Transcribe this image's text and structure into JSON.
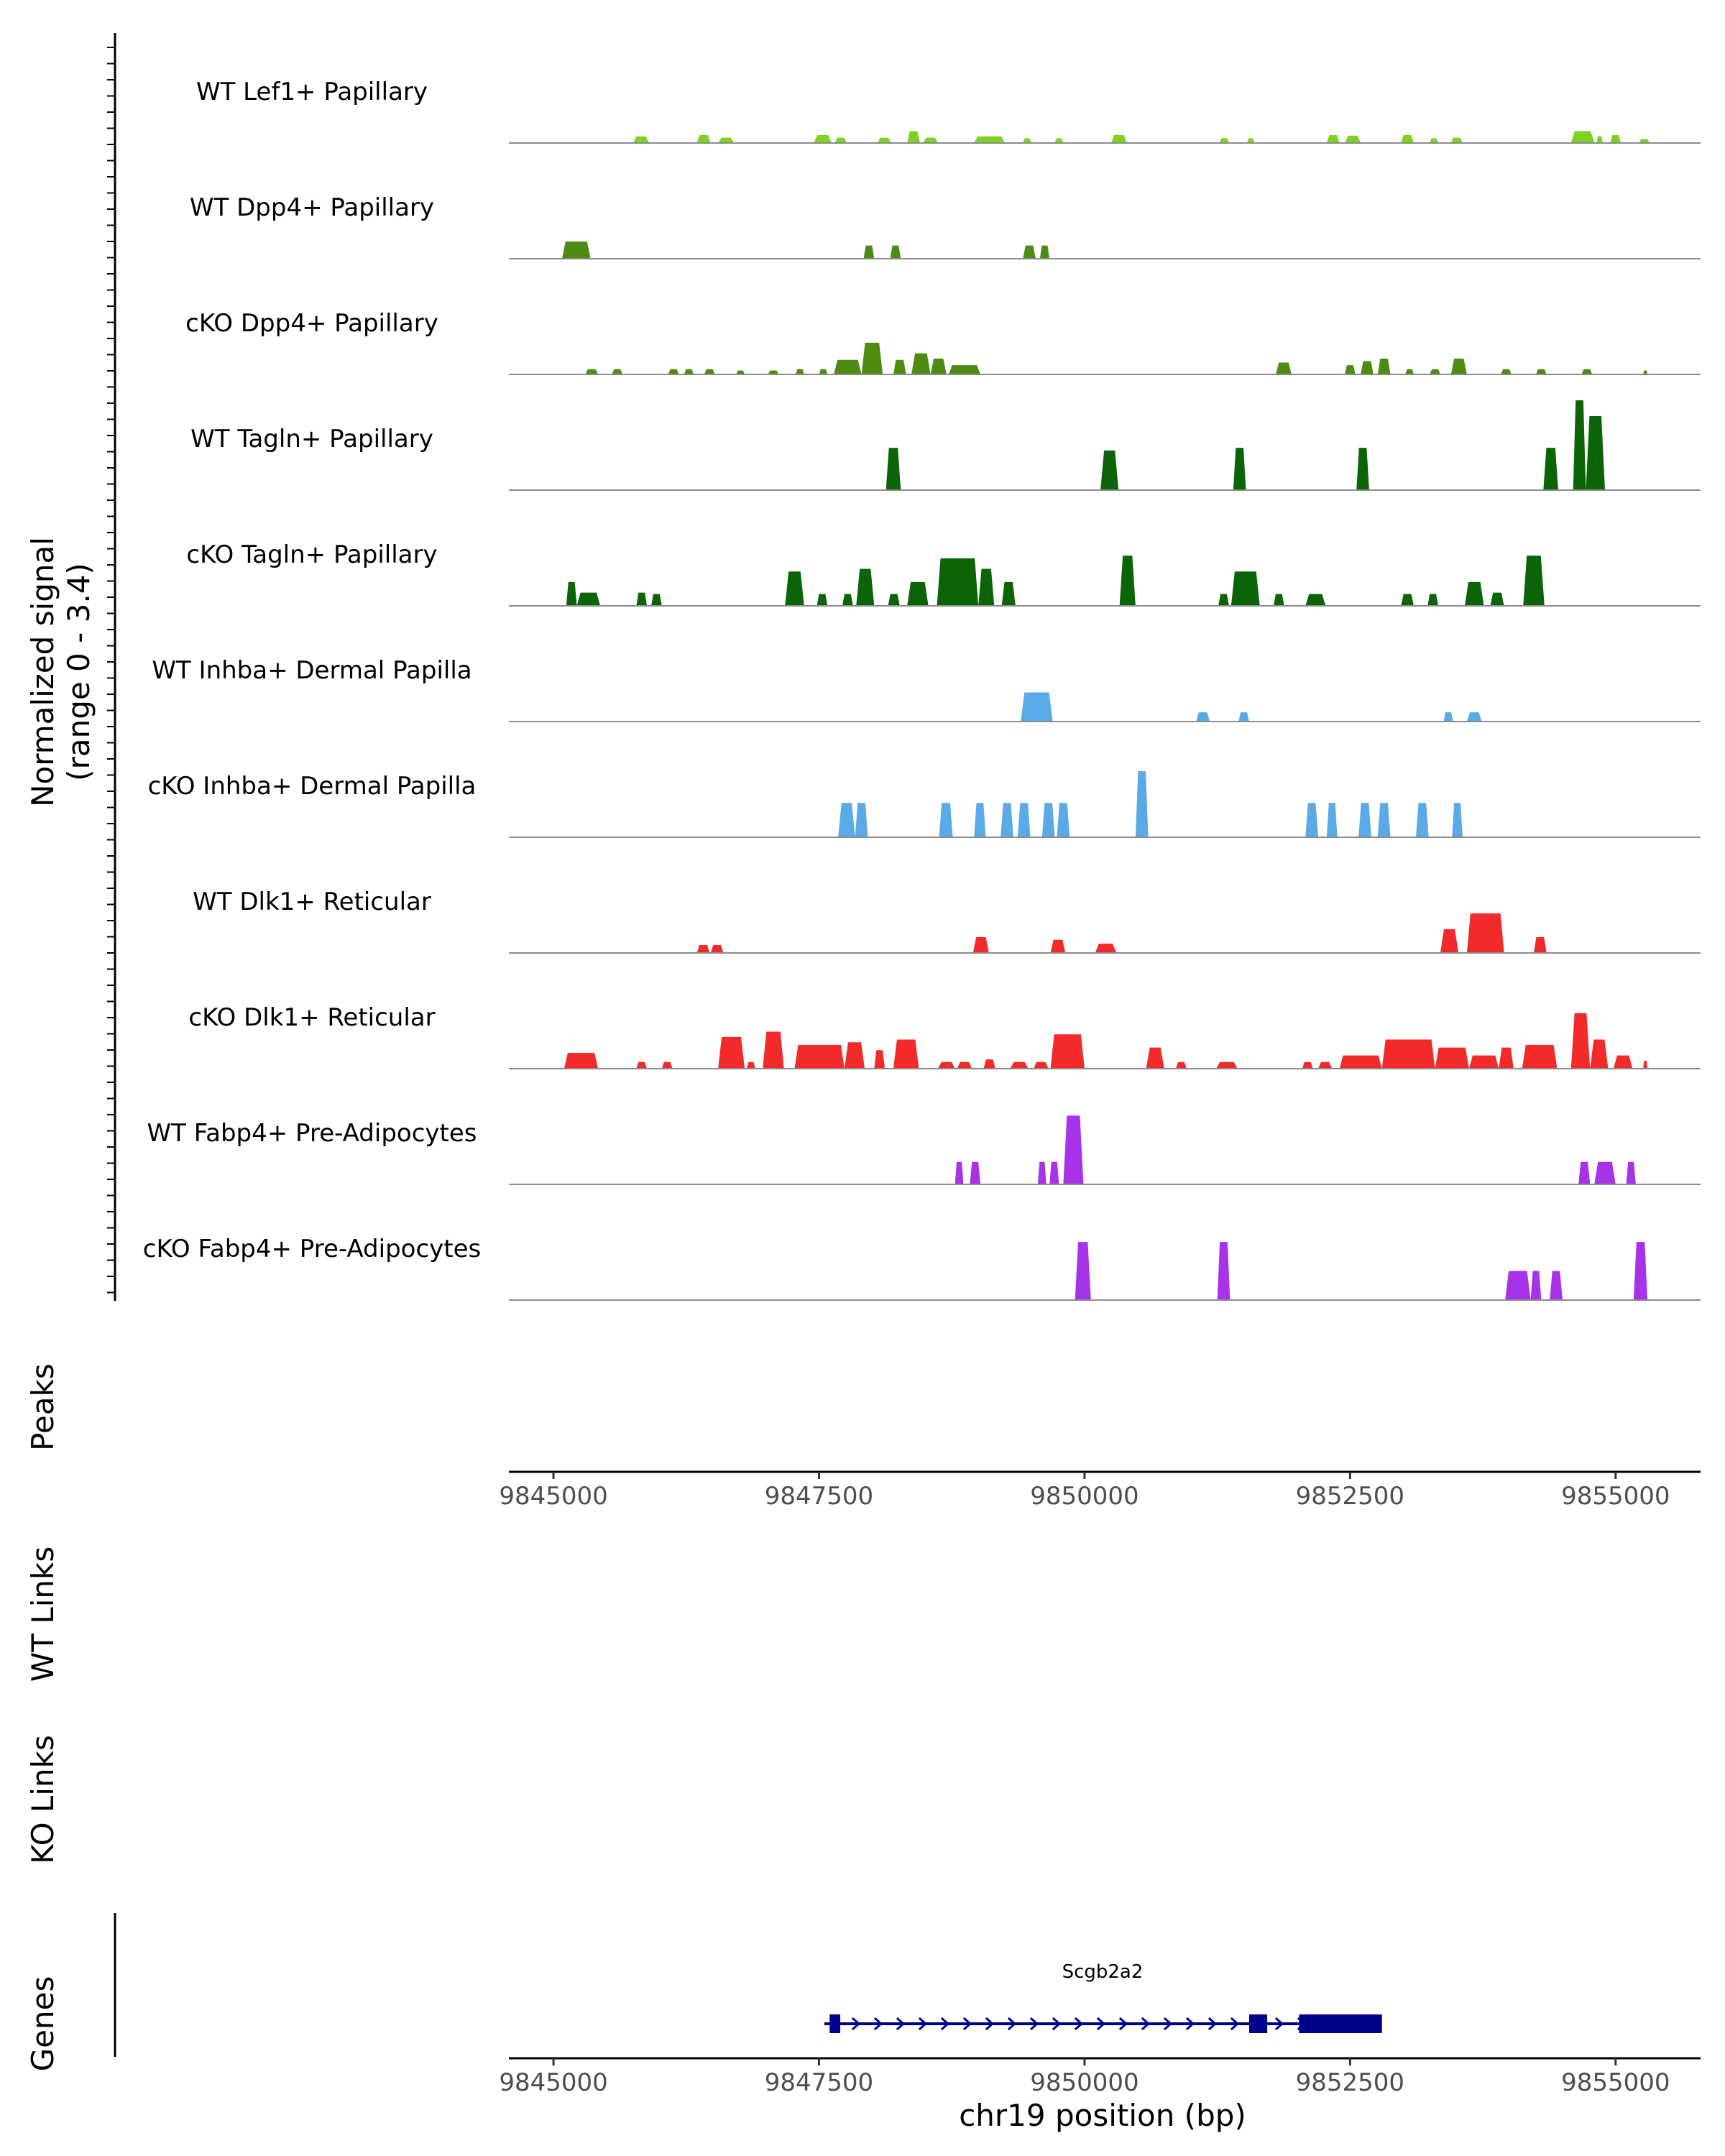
{
  "chart_data": {
    "type": "coverage-track",
    "y_axis_title": "Normalized signal",
    "y_axis_range_label": "(range 0 - 3.4)",
    "ylim": [
      0,
      3.4
    ],
    "xlim": [
      9844580,
      9855800
    ],
    "x_ticks": [
      9845000,
      9847500,
      9850000,
      9852500,
      9855000
    ],
    "x_tick_labels": [
      "9845000",
      "9847500",
      "9850000",
      "9852500",
      "9855000"
    ],
    "xlabel": "chr19 position (bp)",
    "section_labels": {
      "peaks": "Peaks",
      "wt_links": "WT Links",
      "ko_links": "KO Links",
      "genes": "Genes"
    },
    "tracks": [
      {
        "name": "WT Lef1+ Papillary",
        "color": "#7ED321",
        "peaks": [
          [
            9845750,
            9845900,
            0.25
          ],
          [
            9846350,
            9846480,
            0.3
          ],
          [
            9846550,
            9846700,
            0.2
          ],
          [
            9847450,
            9847620,
            0.3
          ],
          [
            9847650,
            9847760,
            0.2
          ],
          [
            9848050,
            9848180,
            0.2
          ],
          [
            9848330,
            9848450,
            0.45
          ],
          [
            9848480,
            9848620,
            0.2
          ],
          [
            9848960,
            9849250,
            0.25
          ],
          [
            9849420,
            9849500,
            0.18
          ],
          [
            9849720,
            9849800,
            0.18
          ],
          [
            9850250,
            9850400,
            0.3
          ],
          [
            9851270,
            9851360,
            0.18
          ],
          [
            9851530,
            9851600,
            0.18
          ],
          [
            9852280,
            9852400,
            0.3
          ],
          [
            9852450,
            9852600,
            0.28
          ],
          [
            9852980,
            9853100,
            0.3
          ],
          [
            9853250,
            9853330,
            0.18
          ],
          [
            9853450,
            9853560,
            0.2
          ],
          [
            9854580,
            9854800,
            0.45
          ],
          [
            9854820,
            9854880,
            0.25
          ],
          [
            9854950,
            9855050,
            0.3
          ],
          [
            9855220,
            9855320,
            0.15
          ]
        ]
      },
      {
        "name": "WT Dpp4+ Papillary",
        "color": "#4E8B12",
        "peaks": [
          [
            9845080,
            9845350,
            0.65
          ],
          [
            9847920,
            9848020,
            0.5
          ],
          [
            9848170,
            9848270,
            0.5
          ],
          [
            9849420,
            9849540,
            0.5
          ],
          [
            9849580,
            9849670,
            0.5
          ]
        ]
      },
      {
        "name": "cKO Dpp4+ Papillary",
        "color": "#4E8B12",
        "peaks": [
          [
            9845300,
            9845420,
            0.2
          ],
          [
            9845550,
            9845650,
            0.2
          ],
          [
            9846080,
            9846180,
            0.2
          ],
          [
            9846230,
            9846320,
            0.2
          ],
          [
            9846420,
            9846520,
            0.2
          ],
          [
            9846720,
            9846800,
            0.15
          ],
          [
            9847020,
            9847120,
            0.15
          ],
          [
            9847280,
            9847360,
            0.2
          ],
          [
            9847500,
            9847580,
            0.2
          ],
          [
            9847640,
            9847900,
            0.55
          ],
          [
            9847900,
            9848100,
            1.2
          ],
          [
            9848200,
            9848320,
            0.55
          ],
          [
            9848370,
            9848550,
            0.8
          ],
          [
            9848550,
            9848700,
            0.6
          ],
          [
            9848720,
            9849020,
            0.35
          ],
          [
            9851800,
            9851950,
            0.45
          ],
          [
            9852450,
            9852550,
            0.35
          ],
          [
            9852600,
            9852720,
            0.5
          ],
          [
            9852760,
            9852880,
            0.6
          ],
          [
            9853020,
            9853100,
            0.2
          ],
          [
            9853250,
            9853350,
            0.2
          ],
          [
            9853450,
            9853600,
            0.6
          ],
          [
            9853920,
            9854020,
            0.2
          ],
          [
            9854250,
            9854350,
            0.2
          ],
          [
            9854680,
            9854780,
            0.2
          ],
          [
            9855260,
            9855300,
            0.15
          ]
        ]
      },
      {
        "name": "WT Tagln+ Papillary",
        "color": "#0B6408",
        "peaks": [
          [
            9848130,
            9848270,
            1.6
          ],
          [
            9850150,
            9850320,
            1.5
          ],
          [
            9851400,
            9851520,
            1.6
          ],
          [
            9852560,
            9852680,
            1.6
          ],
          [
            9854320,
            9854460,
            1.6
          ],
          [
            9854600,
            9854720,
            3.4
          ],
          [
            9854720,
            9854900,
            2.8
          ]
        ]
      },
      {
        "name": "cKO Tagln+ Papillary",
        "color": "#0B6408",
        "peaks": [
          [
            9845120,
            9845220,
            0.9
          ],
          [
            9845220,
            9845440,
            0.5
          ],
          [
            9845780,
            9845880,
            0.5
          ],
          [
            9845920,
            9846020,
            0.45
          ],
          [
            9847180,
            9847360,
            1.3
          ],
          [
            9847480,
            9847580,
            0.45
          ],
          [
            9847720,
            9847820,
            0.45
          ],
          [
            9847850,
            9848020,
            1.4
          ],
          [
            9848150,
            9848260,
            0.45
          ],
          [
            9848330,
            9848530,
            0.9
          ],
          [
            9848610,
            9849000,
            1.8
          ],
          [
            9849000,
            9849150,
            1.4
          ],
          [
            9849220,
            9849350,
            0.9
          ],
          [
            9850330,
            9850480,
            1.9
          ],
          [
            9851260,
            9851360,
            0.45
          ],
          [
            9851380,
            9851650,
            1.3
          ],
          [
            9851780,
            9851880,
            0.45
          ],
          [
            9852080,
            9852270,
            0.45
          ],
          [
            9852980,
            9853100,
            0.45
          ],
          [
            9853230,
            9853330,
            0.45
          ],
          [
            9853580,
            9853760,
            0.9
          ],
          [
            9853820,
            9853950,
            0.5
          ],
          [
            9854130,
            9854330,
            1.9
          ]
        ]
      },
      {
        "name": "WT Inhba+ Dermal Papilla",
        "color": "#5AAAE8",
        "peaks": [
          [
            9849400,
            9849700,
            1.1
          ],
          [
            9851050,
            9851180,
            0.35
          ],
          [
            9851450,
            9851550,
            0.35
          ],
          [
            9853380,
            9853470,
            0.35
          ],
          [
            9853600,
            9853740,
            0.35
          ]
        ]
      },
      {
        "name": "cKO Inhba+ Dermal Papilla",
        "color": "#5AAAE8",
        "peaks": [
          [
            9847680,
            9847840,
            1.3
          ],
          [
            9847840,
            9847960,
            1.3
          ],
          [
            9848630,
            9848760,
            1.3
          ],
          [
            9848960,
            9849070,
            1.3
          ],
          [
            9849210,
            9849330,
            1.3
          ],
          [
            9849370,
            9849490,
            1.3
          ],
          [
            9849600,
            9849720,
            1.3
          ],
          [
            9849740,
            9849860,
            1.3
          ],
          [
            9850480,
            9850600,
            2.5
          ],
          [
            9852080,
            9852200,
            1.3
          ],
          [
            9852280,
            9852380,
            1.3
          ],
          [
            9852580,
            9852700,
            1.3
          ],
          [
            9852760,
            9852880,
            1.3
          ],
          [
            9853120,
            9853240,
            1.3
          ],
          [
            9853460,
            9853560,
            1.3
          ]
        ]
      },
      {
        "name": "WT Dlk1+ Reticular",
        "color": "#F22A2A",
        "peaks": [
          [
            9846350,
            9846470,
            0.3
          ],
          [
            9846480,
            9846600,
            0.3
          ],
          [
            9848950,
            9849100,
            0.6
          ],
          [
            9849680,
            9849820,
            0.5
          ],
          [
            9850100,
            9850300,
            0.35
          ],
          [
            9853350,
            9853520,
            0.9
          ],
          [
            9853600,
            9853950,
            1.5
          ],
          [
            9854230,
            9854350,
            0.6
          ]
        ]
      },
      {
        "name": "cKO Dlk1+ Reticular",
        "color": "#F22A2A",
        "peaks": [
          [
            9845100,
            9845420,
            0.6
          ],
          [
            9845780,
            9845880,
            0.25
          ],
          [
            9846020,
            9846120,
            0.25
          ],
          [
            9846550,
            9846800,
            1.2
          ],
          [
            9846820,
            9846900,
            0.25
          ],
          [
            9846970,
            9847170,
            1.4
          ],
          [
            9847270,
            9847740,
            0.9
          ],
          [
            9847740,
            9847930,
            1.0
          ],
          [
            9848020,
            9848120,
            0.7
          ],
          [
            9848200,
            9848440,
            1.1
          ],
          [
            9848620,
            9848780,
            0.25
          ],
          [
            9848800,
            9848940,
            0.25
          ],
          [
            9849050,
            9849160,
            0.35
          ],
          [
            9849300,
            9849470,
            0.25
          ],
          [
            9849520,
            9849660,
            0.25
          ],
          [
            9849680,
            9850000,
            1.3
          ],
          [
            9850580,
            9850750,
            0.8
          ],
          [
            9850860,
            9850960,
            0.25
          ],
          [
            9851240,
            9851440,
            0.25
          ],
          [
            9852050,
            9852150,
            0.25
          ],
          [
            9852200,
            9852330,
            0.25
          ],
          [
            9852400,
            9852800,
            0.5
          ],
          [
            9852800,
            9853300,
            1.1
          ],
          [
            9853300,
            9853620,
            0.8
          ],
          [
            9853620,
            9853900,
            0.5
          ],
          [
            9853900,
            9854040,
            0.8
          ],
          [
            9854120,
            9854450,
            0.9
          ],
          [
            9854580,
            9854760,
            2.1
          ],
          [
            9854760,
            9854930,
            1.1
          ],
          [
            9854980,
            9855160,
            0.5
          ],
          [
            9855260,
            9855300,
            0.3
          ]
        ]
      },
      {
        "name": "WT Fabp4+ Pre-Adipocytes",
        "color": "#A633E8",
        "peaks": [
          [
            9848780,
            9848860,
            0.85
          ],
          [
            9848920,
            9849020,
            0.85
          ],
          [
            9849560,
            9849640,
            0.85
          ],
          [
            9849670,
            9849760,
            0.85
          ],
          [
            9849800,
            9849990,
            2.6
          ],
          [
            9854650,
            9854760,
            0.85
          ],
          [
            9854800,
            9855000,
            0.85
          ],
          [
            9855100,
            9855190,
            0.85
          ]
        ]
      },
      {
        "name": "cKO Fabp4+ Pre-Adipocytes",
        "color": "#A633E8",
        "peaks": [
          [
            9849910,
            9850060,
            2.2
          ],
          [
            9851250,
            9851370,
            2.2
          ],
          [
            9853960,
            9854200,
            1.1
          ],
          [
            9854200,
            9854300,
            1.1
          ],
          [
            9854380,
            9854500,
            1.1
          ],
          [
            9855170,
            9855300,
            2.2
          ]
        ]
      }
    ],
    "gene": {
      "name": "Scgb2a2",
      "color": "#00008B",
      "start": 9847550,
      "end": 9852800,
      "strand": "+",
      "exons": [
        [
          9847600,
          9847700
        ],
        [
          9851550,
          9851720
        ],
        [
          9852020,
          9852800
        ]
      ]
    }
  }
}
